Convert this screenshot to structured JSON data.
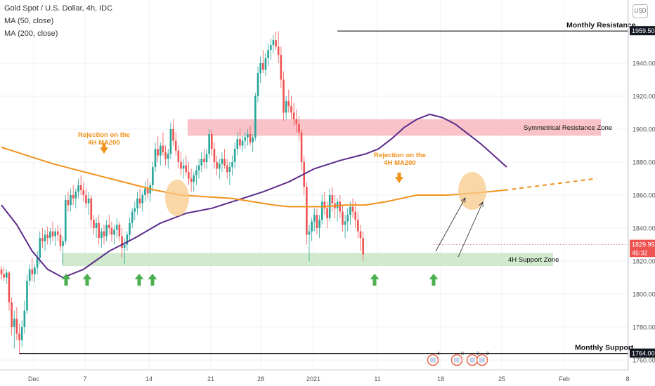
{
  "header": {
    "title": "Gold Spot / U.S. Dollar, 4h, IDC",
    "ma50_label": "MA (50, close)",
    "ma200_label": "MA (200, close)",
    "currency_button": "USD"
  },
  "chart_data": {
    "type": "candlestick",
    "title": "Gold Spot / U.S. Dollar, 4h, IDC",
    "x_tick_labels": [
      "Dec",
      "7",
      "14",
      "21",
      "28",
      "2021",
      "11",
      "18",
      "25",
      "Feb",
      "8"
    ],
    "y_tick_labels": [
      "1760.00",
      "1780.00",
      "1800.00",
      "1820.00",
      "1840.00",
      "1860.00",
      "1880.00",
      "1900.00",
      "1920.00",
      "1940.00"
    ],
    "y_range": [
      1755,
      1968
    ],
    "price_markers": [
      {
        "label": "1959.50",
        "value": 1959.5,
        "style": "dark"
      },
      {
        "label": "1829.95",
        "value": 1829.95,
        "style": "red"
      },
      {
        "label": "45:32",
        "value": 1825.0,
        "style": "red"
      },
      {
        "label": "1764.00",
        "value": 1764.0,
        "style": "dark"
      }
    ],
    "key_levels": [
      {
        "label": "Monthly Resistance",
        "value": 1959.5
      },
      {
        "label": "Monthly Support",
        "value": 1764.0
      }
    ],
    "zones": [
      {
        "label": "Symmetrical Resistance Zone",
        "from": 1896,
        "to": 1906,
        "color": "#f8b9bf"
      },
      {
        "label": "4H Support Zone",
        "from": 1817,
        "to": 1825,
        "color": "#c9e6c4"
      }
    ],
    "annotations": [
      {
        "line1": "Rejection on the",
        "line2": "4H MA200"
      },
      {
        "line1": "Rejection on the",
        "line2": "4H MA200"
      }
    ],
    "event_badges": [
      "4",
      "8",
      "2",
      "2"
    ],
    "series": [
      {
        "name": "MA (50, close)",
        "color": "#5b2c8a",
        "points": [
          [
            0,
            1854
          ],
          [
            6,
            1842
          ],
          [
            12,
            1826
          ],
          [
            18,
            1815
          ],
          [
            24,
            1810
          ],
          [
            32,
            1815
          ],
          [
            42,
            1826
          ],
          [
            52,
            1834
          ],
          [
            62,
            1843
          ],
          [
            72,
            1849
          ],
          [
            82,
            1852
          ],
          [
            92,
            1857
          ],
          [
            102,
            1862
          ],
          [
            112,
            1868
          ],
          [
            122,
            1876
          ],
          [
            132,
            1881
          ],
          [
            142,
            1885
          ],
          [
            147,
            1888
          ],
          [
            152,
            1894
          ],
          [
            157,
            1901
          ],
          [
            162,
            1906
          ],
          [
            167,
            1909
          ],
          [
            172,
            1907
          ],
          [
            177,
            1903
          ],
          [
            182,
            1897
          ],
          [
            187,
            1891
          ],
          [
            192,
            1884
          ],
          [
            197,
            1877
          ]
        ]
      },
      {
        "name": "MA (200, close)",
        "color": "#f0921e",
        "points": [
          [
            0,
            1889
          ],
          [
            10,
            1884
          ],
          [
            20,
            1879
          ],
          [
            30,
            1875
          ],
          [
            40,
            1871
          ],
          [
            50,
            1867
          ],
          [
            60,
            1863
          ],
          [
            70,
            1860
          ],
          [
            80,
            1859
          ],
          [
            90,
            1858
          ],
          [
            98,
            1856
          ],
          [
            106,
            1854
          ],
          [
            112,
            1853
          ],
          [
            118,
            1853
          ],
          [
            126,
            1853
          ],
          [
            134,
            1854
          ],
          [
            142,
            1854
          ],
          [
            150,
            1856
          ],
          [
            156,
            1858
          ],
          [
            162,
            1860
          ],
          [
            168,
            1860
          ],
          [
            174,
            1860
          ],
          [
            182,
            1861
          ],
          [
            190,
            1862
          ],
          [
            196,
            1863
          ]
        ]
      },
      {
        "name": "projection",
        "color": "#f0921e",
        "points": [
          [
            196,
            1863
          ],
          [
            232,
            1870
          ]
        ]
      }
    ],
    "candles": [
      [
        1815,
        1817,
        1809,
        1812
      ],
      [
        1812,
        1816,
        1808,
        1810
      ],
      [
        1810,
        1815,
        1806,
        1813
      ],
      [
        1813,
        1814,
        1790,
        1795
      ],
      [
        1795,
        1798,
        1775,
        1780
      ],
      [
        1780,
        1790,
        1767,
        1785
      ],
      [
        1785,
        1792,
        1772,
        1776
      ],
      [
        1776,
        1782,
        1764,
        1772
      ],
      [
        1772,
        1784,
        1768,
        1780
      ],
      [
        1780,
        1796,
        1776,
        1790
      ],
      [
        1790,
        1812,
        1788,
        1808
      ],
      [
        1808,
        1818,
        1805,
        1815
      ],
      [
        1815,
        1822,
        1808,
        1812
      ],
      [
        1812,
        1818,
        1807,
        1816
      ],
      [
        1816,
        1826,
        1812,
        1822
      ],
      [
        1822,
        1838,
        1818,
        1834
      ],
      [
        1834,
        1840,
        1828,
        1832
      ],
      [
        1832,
        1839,
        1826,
        1836
      ],
      [
        1836,
        1841,
        1830,
        1834
      ],
      [
        1834,
        1840,
        1830,
        1838
      ],
      [
        1838,
        1844,
        1832,
        1835
      ],
      [
        1835,
        1840,
        1829,
        1838
      ],
      [
        1838,
        1842,
        1832,
        1836
      ],
      [
        1836,
        1840,
        1826,
        1829
      ],
      [
        1829,
        1835,
        1818,
        1832
      ],
      [
        1832,
        1860,
        1830,
        1857
      ],
      [
        1857,
        1862,
        1850,
        1854
      ],
      [
        1854,
        1864,
        1850,
        1860
      ],
      [
        1860,
        1866,
        1854,
        1858
      ],
      [
        1858,
        1864,
        1852,
        1862
      ],
      [
        1862,
        1870,
        1858,
        1866
      ],
      [
        1866,
        1872,
        1860,
        1863
      ],
      [
        1863,
        1868,
        1856,
        1860
      ],
      [
        1860,
        1864,
        1852,
        1855
      ],
      [
        1855,
        1862,
        1848,
        1858
      ],
      [
        1858,
        1860,
        1840,
        1845
      ],
      [
        1845,
        1848,
        1836,
        1840
      ],
      [
        1840,
        1846,
        1834,
        1843
      ],
      [
        1843,
        1848,
        1830,
        1834
      ],
      [
        1834,
        1840,
        1828,
        1838
      ],
      [
        1838,
        1842,
        1830,
        1835
      ],
      [
        1835,
        1845,
        1832,
        1842
      ],
      [
        1842,
        1848,
        1836,
        1840
      ],
      [
        1840,
        1844,
        1832,
        1836
      ],
      [
        1836,
        1842,
        1830,
        1839
      ],
      [
        1839,
        1846,
        1834,
        1842
      ],
      [
        1842,
        1844,
        1832,
        1835
      ],
      [
        1835,
        1840,
        1822,
        1828
      ],
      [
        1828,
        1834,
        1818,
        1830
      ],
      [
        1830,
        1838,
        1826,
        1836
      ],
      [
        1836,
        1846,
        1832,
        1843
      ],
      [
        1843,
        1852,
        1840,
        1850
      ],
      [
        1850,
        1856,
        1845,
        1852
      ],
      [
        1852,
        1862,
        1848,
        1858
      ],
      [
        1858,
        1864,
        1852,
        1855
      ],
      [
        1855,
        1862,
        1850,
        1860
      ],
      [
        1860,
        1868,
        1856,
        1864
      ],
      [
        1864,
        1870,
        1858,
        1861
      ],
      [
        1861,
        1868,
        1856,
        1866
      ],
      [
        1866,
        1880,
        1862,
        1877
      ],
      [
        1877,
        1892,
        1874,
        1888
      ],
      [
        1888,
        1896,
        1880,
        1884
      ],
      [
        1884,
        1892,
        1878,
        1890
      ],
      [
        1890,
        1898,
        1884,
        1886
      ],
      [
        1886,
        1890,
        1878,
        1882
      ],
      [
        1882,
        1888,
        1876,
        1885
      ],
      [
        1885,
        1904,
        1882,
        1900
      ],
      [
        1900,
        1906,
        1890,
        1893
      ],
      [
        1893,
        1898,
        1884,
        1887
      ],
      [
        1887,
        1890,
        1876,
        1880
      ],
      [
        1880,
        1886,
        1872,
        1876
      ],
      [
        1876,
        1882,
        1870,
        1878
      ],
      [
        1878,
        1884,
        1872,
        1874
      ],
      [
        1874,
        1880,
        1866,
        1870
      ],
      [
        1870,
        1876,
        1862,
        1868
      ],
      [
        1868,
        1874,
        1862,
        1872
      ],
      [
        1872,
        1878,
        1866,
        1875
      ],
      [
        1875,
        1882,
        1870,
        1878
      ],
      [
        1878,
        1886,
        1874,
        1882
      ],
      [
        1882,
        1888,
        1876,
        1880
      ],
      [
        1880,
        1888,
        1876,
        1885
      ],
      [
        1885,
        1900,
        1882,
        1897
      ],
      [
        1897,
        1899,
        1884,
        1888
      ],
      [
        1888,
        1892,
        1876,
        1880
      ],
      [
        1880,
        1884,
        1872,
        1876
      ],
      [
        1876,
        1882,
        1870,
        1879
      ],
      [
        1879,
        1886,
        1874,
        1882
      ],
      [
        1882,
        1888,
        1876,
        1878
      ],
      [
        1878,
        1882,
        1870,
        1874
      ],
      [
        1874,
        1880,
        1866,
        1877
      ],
      [
        1877,
        1884,
        1872,
        1880
      ],
      [
        1880,
        1892,
        1876,
        1888
      ],
      [
        1888,
        1898,
        1884,
        1894
      ],
      [
        1894,
        1900,
        1888,
        1890
      ],
      [
        1890,
        1896,
        1886,
        1893
      ],
      [
        1893,
        1898,
        1888,
        1895
      ],
      [
        1895,
        1900,
        1890,
        1897
      ],
      [
        1897,
        1902,
        1890,
        1892
      ],
      [
        1892,
        1897,
        1886,
        1895
      ],
      [
        1895,
        1922,
        1893,
        1920
      ],
      [
        1920,
        1938,
        1916,
        1934
      ],
      [
        1934,
        1944,
        1928,
        1940
      ],
      [
        1940,
        1948,
        1934,
        1936
      ],
      [
        1936,
        1946,
        1932,
        1943
      ],
      [
        1943,
        1952,
        1938,
        1948
      ],
      [
        1948,
        1955,
        1942,
        1951
      ],
      [
        1951,
        1957,
        1946,
        1954
      ],
      [
        1954,
        1959,
        1948,
        1950
      ],
      [
        1950,
        1959.5,
        1940,
        1945
      ],
      [
        1945,
        1950,
        1925,
        1930
      ],
      [
        1930,
        1935,
        1905,
        1910
      ],
      [
        1910,
        1920,
        1906,
        1917
      ],
      [
        1917,
        1924,
        1910,
        1914
      ],
      [
        1914,
        1920,
        1906,
        1910
      ],
      [
        1910,
        1916,
        1902,
        1906
      ],
      [
        1906,
        1912,
        1898,
        1903
      ],
      [
        1903,
        1908,
        1893,
        1898
      ],
      [
        1898,
        1900,
        1875,
        1880
      ],
      [
        1880,
        1884,
        1860,
        1865
      ],
      [
        1865,
        1868,
        1830,
        1836
      ],
      [
        1836,
        1842,
        1820,
        1838
      ],
      [
        1838,
        1846,
        1832,
        1844
      ],
      [
        1844,
        1852,
        1838,
        1848
      ],
      [
        1848,
        1852,
        1836,
        1840
      ],
      [
        1840,
        1848,
        1834,
        1845
      ],
      [
        1845,
        1860,
        1842,
        1856
      ],
      [
        1856,
        1862,
        1848,
        1852
      ],
      [
        1852,
        1856,
        1840,
        1846
      ],
      [
        1846,
        1864,
        1844,
        1860
      ],
      [
        1860,
        1865,
        1850,
        1855
      ],
      [
        1855,
        1860,
        1846,
        1852
      ],
      [
        1852,
        1858,
        1844,
        1856
      ],
      [
        1856,
        1860,
        1846,
        1850
      ],
      [
        1850,
        1854,
        1838,
        1842
      ],
      [
        1842,
        1848,
        1834,
        1844
      ],
      [
        1844,
        1852,
        1838,
        1848
      ],
      [
        1848,
        1856,
        1842,
        1853
      ],
      [
        1853,
        1858,
        1846,
        1850
      ],
      [
        1850,
        1856,
        1840,
        1845
      ],
      [
        1845,
        1850,
        1834,
        1838
      ],
      [
        1838,
        1842,
        1826,
        1834
      ],
      [
        1834,
        1838,
        1820,
        1824
      ]
    ]
  }
}
